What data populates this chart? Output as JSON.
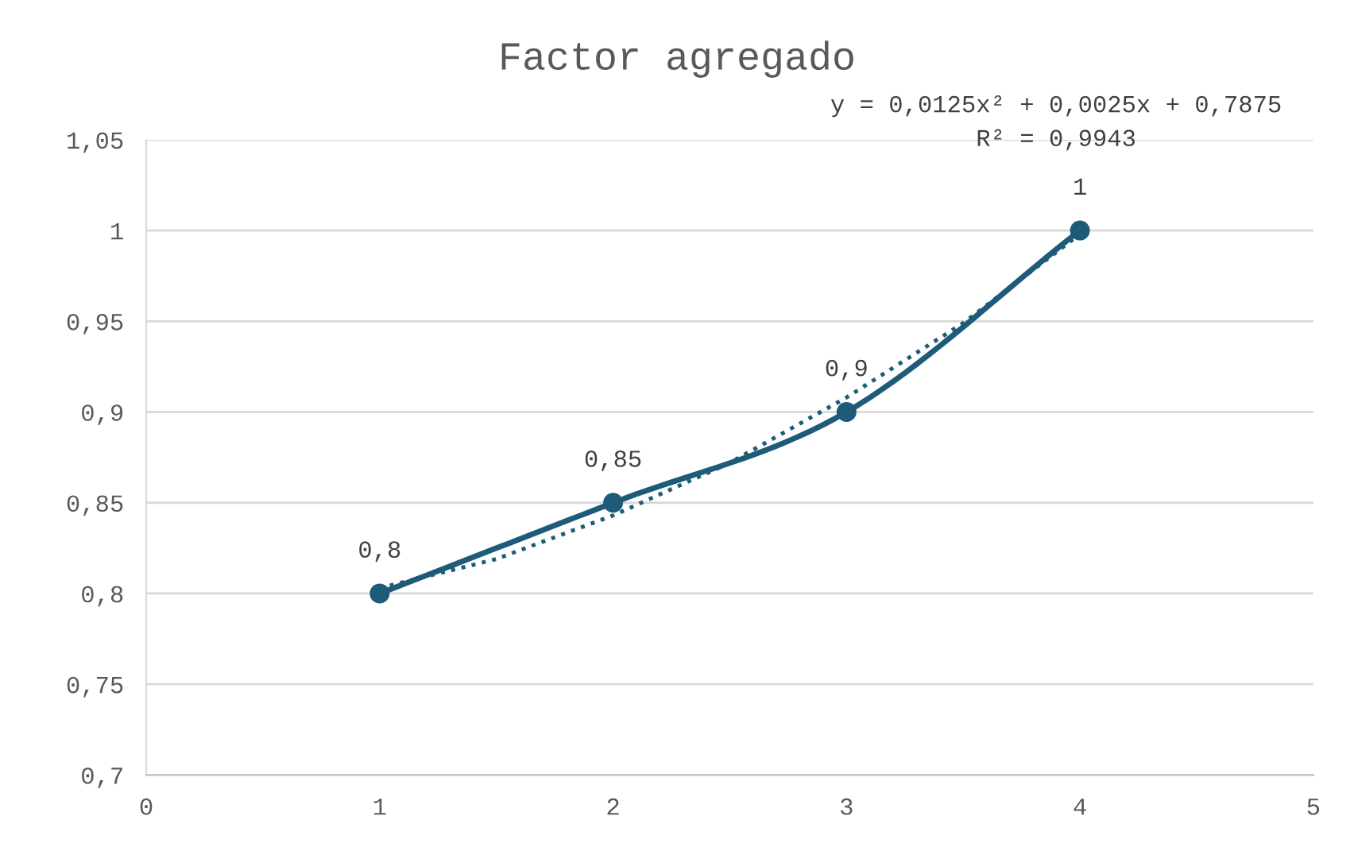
{
  "chart_data": {
    "type": "line",
    "title": "Factor agregado",
    "annotations": [
      "y = 0,0125x² + 0,0025x + 0,7875",
      "R² = 0,9943"
    ],
    "x": [
      1,
      2,
      3,
      4
    ],
    "series": [
      {
        "color": "#1d5b79",
        "values": [
          0.8,
          0.85,
          0.9,
          1
        ],
        "value_labels": [
          "0,8",
          "0,85",
          "0,9",
          "1"
        ],
        "marker": "circle",
        "line_style": "solid"
      },
      {
        "type": "line",
        "color": "#1d5b79",
        "x": [
          1,
          1.5,
          2,
          2.5,
          3,
          3.5,
          4
        ],
        "values": [
          0.803,
          0.819,
          0.843,
          0.872,
          0.908,
          0.949,
          0.998
        ],
        "marker": "none",
        "line_style": "dotted"
      }
    ],
    "xlim": [
      0,
      5
    ],
    "xticks": [
      0,
      1,
      2,
      3,
      4,
      5
    ],
    "ylim": [
      0.7,
      1.05
    ],
    "yticks": [
      {
        "value": 0.7,
        "label": "0,7"
      },
      {
        "value": 0.75,
        "label": "0,75"
      },
      {
        "value": 0.8,
        "label": "0,8"
      },
      {
        "value": 0.85,
        "label": "0,85"
      },
      {
        "value": 0.9,
        "label": "0,9"
      },
      {
        "value": 0.95,
        "label": "0,95"
      },
      {
        "value": 1,
        "label": "1"
      },
      {
        "value": 1.05,
        "label": "1,05"
      }
    ],
    "grid": "y",
    "legend": false
  }
}
